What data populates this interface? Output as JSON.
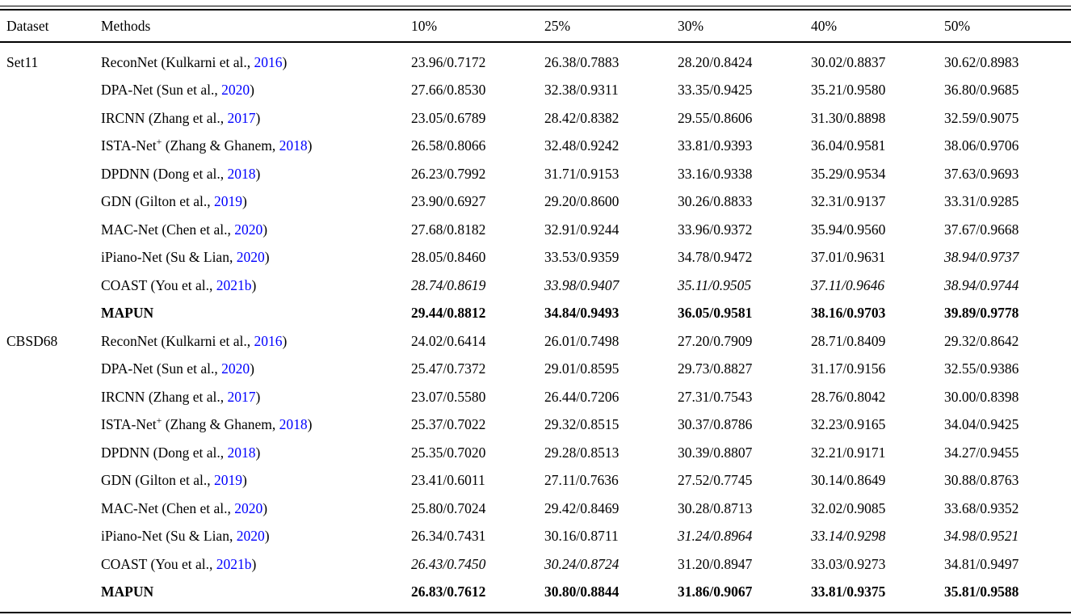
{
  "citation_link_color": "#0000FF",
  "header": {
    "dataset": "Dataset",
    "methods": "Methods",
    "rates": [
      "10%",
      "25%",
      "30%",
      "40%",
      "50%"
    ]
  },
  "groups": [
    {
      "dataset": "Set11",
      "rows": [
        {
          "method": {
            "name": "ReconNet",
            "sup": "",
            "cite": " (Kulkarni et al., ",
            "year": "2016",
            "close": ")"
          },
          "bold": false,
          "values": [
            {
              "text": "23.96/0.7172",
              "style": "n"
            },
            {
              "text": "26.38/0.7883",
              "style": "n"
            },
            {
              "text": "28.20/0.8424",
              "style": "n"
            },
            {
              "text": "30.02/0.8837",
              "style": "n"
            },
            {
              "text": "30.62/0.8983",
              "style": "n"
            }
          ]
        },
        {
          "method": {
            "name": "DPA-Net",
            "sup": "",
            "cite": " (Sun et al., ",
            "year": "2020",
            "close": ")"
          },
          "bold": false,
          "values": [
            {
              "text": "27.66/0.8530",
              "style": "n"
            },
            {
              "text": "32.38/0.9311",
              "style": "n"
            },
            {
              "text": "33.35/0.9425",
              "style": "n"
            },
            {
              "text": "35.21/0.9580",
              "style": "n"
            },
            {
              "text": "36.80/0.9685",
              "style": "n"
            }
          ]
        },
        {
          "method": {
            "name": "IRCNN",
            "sup": "",
            "cite": " (Zhang et al., ",
            "year": "2017",
            "close": ")"
          },
          "bold": false,
          "values": [
            {
              "text": "23.05/0.6789",
              "style": "n"
            },
            {
              "text": "28.42/0.8382",
              "style": "n"
            },
            {
              "text": "29.55/0.8606",
              "style": "n"
            },
            {
              "text": "31.30/0.8898",
              "style": "n"
            },
            {
              "text": "32.59/0.9075",
              "style": "n"
            }
          ]
        },
        {
          "method": {
            "name": "ISTA-Net",
            "sup": "+",
            "cite": " (Zhang & Ghanem, ",
            "year": "2018",
            "close": ")"
          },
          "bold": false,
          "values": [
            {
              "text": "26.58/0.8066",
              "style": "n"
            },
            {
              "text": "32.48/0.9242",
              "style": "n"
            },
            {
              "text": "33.81/0.9393",
              "style": "n"
            },
            {
              "text": "36.04/0.9581",
              "style": "n"
            },
            {
              "text": "38.06/0.9706",
              "style": "n"
            }
          ]
        },
        {
          "method": {
            "name": "DPDNN",
            "sup": "",
            "cite": " (Dong et al., ",
            "year": "2018",
            "close": ")"
          },
          "bold": false,
          "values": [
            {
              "text": "26.23/0.7992",
              "style": "n"
            },
            {
              "text": "31.71/0.9153",
              "style": "n"
            },
            {
              "text": "33.16/0.9338",
              "style": "n"
            },
            {
              "text": "35.29/0.9534",
              "style": "n"
            },
            {
              "text": "37.63/0.9693",
              "style": "n"
            }
          ]
        },
        {
          "method": {
            "name": "GDN",
            "sup": "",
            "cite": " (Gilton et al., ",
            "year": "2019",
            "close": ")"
          },
          "bold": false,
          "values": [
            {
              "text": "23.90/0.6927",
              "style": "n"
            },
            {
              "text": "29.20/0.8600",
              "style": "n"
            },
            {
              "text": "30.26/0.8833",
              "style": "n"
            },
            {
              "text": "32.31/0.9137",
              "style": "n"
            },
            {
              "text": "33.31/0.9285",
              "style": "n"
            }
          ]
        },
        {
          "method": {
            "name": "MAC-Net",
            "sup": "",
            "cite": " (Chen et al., ",
            "year": "2020",
            "close": ")"
          },
          "bold": false,
          "values": [
            {
              "text": "27.68/0.8182",
              "style": "n"
            },
            {
              "text": "32.91/0.9244",
              "style": "n"
            },
            {
              "text": "33.96/0.9372",
              "style": "n"
            },
            {
              "text": "35.94/0.9560",
              "style": "n"
            },
            {
              "text": "37.67/0.9668",
              "style": "n"
            }
          ]
        },
        {
          "method": {
            "name": "iPiano-Net",
            "sup": "",
            "cite": " (Su & Lian, ",
            "year": "2020",
            "close": ")"
          },
          "bold": false,
          "values": [
            {
              "text": "28.05/0.8460",
              "style": "n"
            },
            {
              "text": "33.53/0.9359",
              "style": "n"
            },
            {
              "text": "34.78/0.9472",
              "style": "n"
            },
            {
              "text": "37.01/0.9631",
              "style": "n"
            },
            {
              "text": "38.94/0.9737",
              "style": "i"
            }
          ]
        },
        {
          "method": {
            "name": "COAST",
            "sup": "",
            "cite": " (You et al., ",
            "year": "2021b",
            "close": ")"
          },
          "bold": false,
          "values": [
            {
              "text": "28.74/0.8619",
              "style": "i"
            },
            {
              "text": "33.98/0.9407",
              "style": "i"
            },
            {
              "text": "35.11/0.9505",
              "style": "i"
            },
            {
              "text": "37.11/0.9646",
              "style": "i"
            },
            {
              "text": "38.94/0.9744",
              "style": "i"
            }
          ]
        },
        {
          "method": {
            "name": "MAPUN",
            "sup": "",
            "cite": "",
            "year": "",
            "close": ""
          },
          "bold": true,
          "values": [
            {
              "text": "29.44/0.8812",
              "style": "b"
            },
            {
              "text": "34.84/0.9493",
              "style": "b"
            },
            {
              "text": "36.05/0.9581",
              "style": "b"
            },
            {
              "text": "38.16/0.9703",
              "style": "b"
            },
            {
              "text": "39.89/0.9778",
              "style": "b"
            }
          ]
        }
      ]
    },
    {
      "dataset": "CBSD68",
      "rows": [
        {
          "method": {
            "name": "ReconNet",
            "sup": "",
            "cite": " (Kulkarni et al., ",
            "year": "2016",
            "close": ")"
          },
          "bold": false,
          "values": [
            {
              "text": "24.02/0.6414",
              "style": "n"
            },
            {
              "text": "26.01/0.7498",
              "style": "n"
            },
            {
              "text": "27.20/0.7909",
              "style": "n"
            },
            {
              "text": "28.71/0.8409",
              "style": "n"
            },
            {
              "text": "29.32/0.8642",
              "style": "n"
            }
          ]
        },
        {
          "method": {
            "name": "DPA-Net",
            "sup": "",
            "cite": " (Sun et al., ",
            "year": "2020",
            "close": ")"
          },
          "bold": false,
          "values": [
            {
              "text": "25.47/0.7372",
              "style": "n"
            },
            {
              "text": "29.01/0.8595",
              "style": "n"
            },
            {
              "text": "29.73/0.8827",
              "style": "n"
            },
            {
              "text": "31.17/0.9156",
              "style": "n"
            },
            {
              "text": "32.55/0.9386",
              "style": "n"
            }
          ]
        },
        {
          "method": {
            "name": "IRCNN",
            "sup": "",
            "cite": " (Zhang et al., ",
            "year": "2017",
            "close": ")"
          },
          "bold": false,
          "values": [
            {
              "text": "23.07/0.5580",
              "style": "n"
            },
            {
              "text": "26.44/0.7206",
              "style": "n"
            },
            {
              "text": "27.31/0.7543",
              "style": "n"
            },
            {
              "text": "28.76/0.8042",
              "style": "n"
            },
            {
              "text": "30.00/0.8398",
              "style": "n"
            }
          ]
        },
        {
          "method": {
            "name": "ISTA-Net",
            "sup": "+",
            "cite": " (Zhang & Ghanem, ",
            "year": "2018",
            "close": ")"
          },
          "bold": false,
          "values": [
            {
              "text": "25.37/0.7022",
              "style": "n"
            },
            {
              "text": "29.32/0.8515",
              "style": "n"
            },
            {
              "text": "30.37/0.8786",
              "style": "n"
            },
            {
              "text": "32.23/0.9165",
              "style": "n"
            },
            {
              "text": "34.04/0.9425",
              "style": "n"
            }
          ]
        },
        {
          "method": {
            "name": "DPDNN",
            "sup": "",
            "cite": " (Dong et al., ",
            "year": "2018",
            "close": ")"
          },
          "bold": false,
          "values": [
            {
              "text": "25.35/0.7020",
              "style": "n"
            },
            {
              "text": "29.28/0.8513",
              "style": "n"
            },
            {
              "text": "30.39/0.8807",
              "style": "n"
            },
            {
              "text": "32.21/0.9171",
              "style": "n"
            },
            {
              "text": "34.27/0.9455",
              "style": "n"
            }
          ]
        },
        {
          "method": {
            "name": "GDN",
            "sup": "",
            "cite": " (Gilton et al., ",
            "year": "2019",
            "close": ")"
          },
          "bold": false,
          "values": [
            {
              "text": "23.41/0.6011",
              "style": "n"
            },
            {
              "text": "27.11/0.7636",
              "style": "n"
            },
            {
              "text": "27.52/0.7745",
              "style": "n"
            },
            {
              "text": "30.14/0.8649",
              "style": "n"
            },
            {
              "text": "30.88/0.8763",
              "style": "n"
            }
          ]
        },
        {
          "method": {
            "name": "MAC-Net",
            "sup": "",
            "cite": " (Chen et al., ",
            "year": "2020",
            "close": ")"
          },
          "bold": false,
          "values": [
            {
              "text": "25.80/0.7024",
              "style": "n"
            },
            {
              "text": "29.42/0.8469",
              "style": "n"
            },
            {
              "text": "30.28/0.8713",
              "style": "n"
            },
            {
              "text": "32.02/0.9085",
              "style": "n"
            },
            {
              "text": "33.68/0.9352",
              "style": "n"
            }
          ]
        },
        {
          "method": {
            "name": "iPiano-Net",
            "sup": "",
            "cite": " (Su & Lian, ",
            "year": "2020",
            "close": ")"
          },
          "bold": false,
          "values": [
            {
              "text": "26.34/0.7431",
              "style": "n"
            },
            {
              "text": "30.16/0.8711",
              "style": "n"
            },
            {
              "text": "31.24/0.8964",
              "style": "i"
            },
            {
              "text": "33.14/0.9298",
              "style": "i"
            },
            {
              "text": "34.98/0.9521",
              "style": "i"
            }
          ]
        },
        {
          "method": {
            "name": "COAST",
            "sup": "",
            "cite": " (You et al., ",
            "year": "2021b",
            "close": ")"
          },
          "bold": false,
          "values": [
            {
              "text": "26.43/0.7450",
              "style": "i"
            },
            {
              "text": "30.24/0.8724",
              "style": "i"
            },
            {
              "text": "31.20/0.8947",
              "style": "n"
            },
            {
              "text": "33.03/0.9273",
              "style": "n"
            },
            {
              "text": "34.81/0.9497",
              "style": "n"
            }
          ]
        },
        {
          "method": {
            "name": "MAPUN",
            "sup": "",
            "cite": "",
            "year": "",
            "close": ""
          },
          "bold": true,
          "values": [
            {
              "text": "26.83/0.7612",
              "style": "b"
            },
            {
              "text": "30.80/0.8844",
              "style": "b"
            },
            {
              "text": "31.86/0.9067",
              "style": "b"
            },
            {
              "text": "33.81/0.9375",
              "style": "b"
            },
            {
              "text": "35.81/0.9588",
              "style": "b"
            }
          ]
        }
      ]
    }
  ]
}
